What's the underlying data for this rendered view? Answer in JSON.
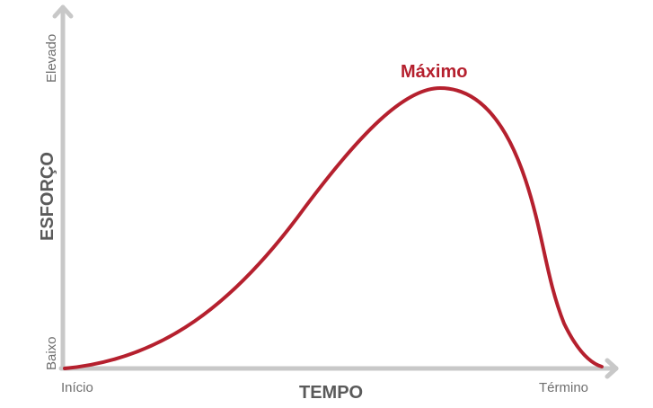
{
  "diagram": {
    "y_axis": {
      "title": "ESFORÇO",
      "low_label": "Baixo",
      "high_label": "Elevado"
    },
    "x_axis": {
      "title": "TEMPO",
      "start_label": "Início",
      "end_label": "Término"
    },
    "curve": {
      "peak_label": "Máximo",
      "shape": "rise-peak-fall"
    },
    "colors": {
      "curve": "#b5202e",
      "axis": "#c8c8c8",
      "text": "#6f6f6f"
    }
  }
}
